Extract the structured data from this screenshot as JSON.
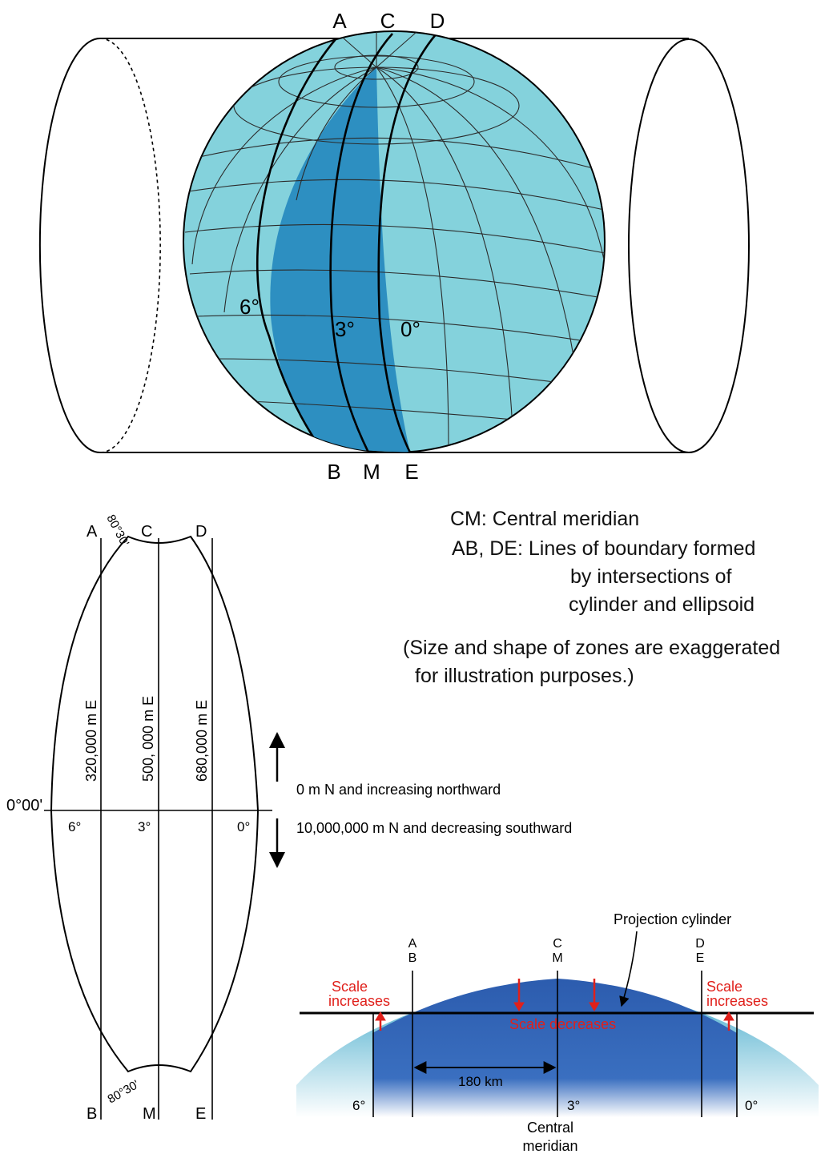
{
  "globe": {
    "labels_top": [
      "A",
      "C",
      "D"
    ],
    "labels_bottom": [
      "B",
      "M",
      "E"
    ],
    "degrees": [
      "6°",
      "3°",
      "0°"
    ],
    "colors": {
      "sphere": "#84d2dc",
      "zone": "#2d8fc1",
      "stroke": "#000000"
    }
  },
  "zone": {
    "top_labels": [
      "A",
      "C",
      "D"
    ],
    "bottom_labels": [
      "B",
      "M",
      "E"
    ],
    "lat_top": "80°30'",
    "lat_bottom": "80°30'",
    "equator": "0°00'",
    "eastings": [
      "320,000 m E",
      "500, 000 m E",
      "680,000 m E"
    ],
    "degrees": [
      "6°",
      "3°",
      "0°"
    ],
    "north_note": "0 m N and increasing northward",
    "south_note": "10,000,000 m N and decreasing southward"
  },
  "legend": {
    "line1": "CM: Central meridian",
    "line2": "AB, DE: Lines of boundary formed",
    "line3": "by intersections of",
    "line4": "cylinder and ellipsoid",
    "line5": "(Size and shape of zones are exaggerated",
    "line6": "for illustration purposes.)"
  },
  "section": {
    "cylinder_label": "Projection cylinder",
    "pair_ab": [
      "A",
      "B"
    ],
    "pair_cm": [
      "C",
      "M"
    ],
    "pair_de": [
      "D",
      "E"
    ],
    "scale_increases": [
      "Scale",
      "increases"
    ],
    "scale_decreases": "Scale decreases",
    "distance": "180 km",
    "degrees": [
      "6°",
      "3°",
      "0°"
    ],
    "central": [
      "Central",
      "meridian"
    ],
    "colors": {
      "earth": "#2f63b3",
      "edge": "#5db6cf",
      "arrow": "#e0201b"
    }
  }
}
